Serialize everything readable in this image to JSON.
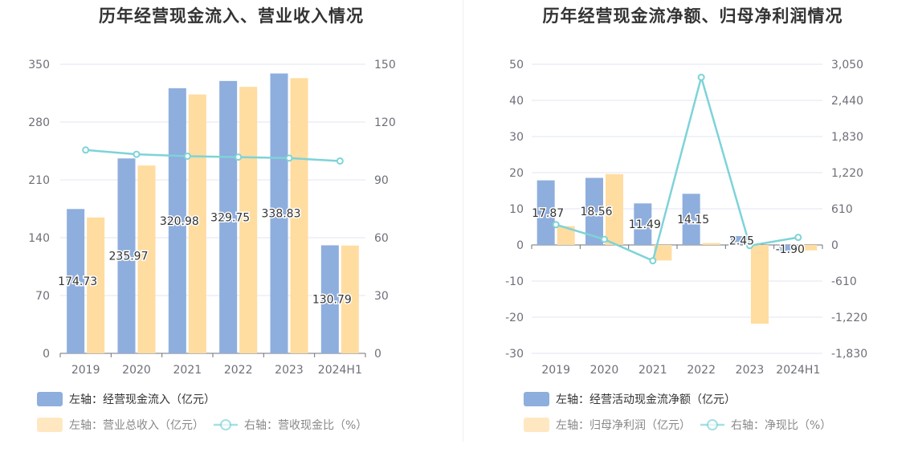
{
  "colors": {
    "bar_primary": "#8eaedd",
    "bar_secondary": "#ffdca0",
    "line": "#7ed3d8",
    "grid": "#e0e6f1",
    "axis_line": "#6e7079"
  },
  "chart_data": [
    {
      "type": "bar",
      "title": "历年经营现金流入、营业收入情况",
      "categories": [
        "2019",
        "2020",
        "2021",
        "2022",
        "2023",
        "2024H1"
      ],
      "series": [
        {
          "name": "左轴：经营现金流入（亿元）",
          "axis": "left",
          "type": "bar",
          "values": [
            174.73,
            235.97,
            320.98,
            329.75,
            338.83,
            130.79
          ],
          "labels_shown": true
        },
        {
          "name": "左轴：营业总收入（亿元）",
          "axis": "left",
          "type": "bar",
          "values": [
            164.5,
            227.4,
            313.4,
            322.6,
            333.2,
            130.5
          ],
          "labels_shown": false
        },
        {
          "name": "右轴：营收现金比（%）",
          "axis": "right",
          "type": "line",
          "values": [
            105.5,
            103.3,
            102.3,
            101.8,
            101.3,
            99.8
          ],
          "labels_shown": false
        }
      ],
      "left_axis": {
        "ticks": [
          "0",
          "70",
          "140",
          "210",
          "280",
          "350"
        ],
        "min": 0,
        "max": 350
      },
      "right_axis": {
        "ticks": [
          "0",
          "30",
          "60",
          "90",
          "120",
          "150"
        ],
        "min": 0,
        "max": 150
      },
      "grid": true,
      "legend_position": "bottom-left"
    },
    {
      "type": "bar",
      "title": "历年经营现金流净额、归母净利润情况",
      "categories": [
        "2019",
        "2020",
        "2021",
        "2022",
        "2023",
        "2024H1"
      ],
      "series": [
        {
          "name": "左轴：经营活动现金流净额（亿元）",
          "axis": "left",
          "type": "bar",
          "values": [
            17.87,
            18.56,
            11.49,
            14.15,
            2.45,
            -1.9
          ],
          "labels_shown": true
        },
        {
          "name": "左轴：归母净利润（亿元）",
          "axis": "left",
          "type": "bar",
          "values": [
            5.2,
            19.6,
            -4.3,
            0.5,
            -21.8,
            -1.5
          ],
          "labels_shown": false
        },
        {
          "name": "右轴：净现比（%）",
          "axis": "right",
          "type": "line",
          "values": [
            343,
            94,
            -267,
            2830,
            -11,
            127
          ],
          "labels_shown": false
        }
      ],
      "left_axis": {
        "ticks": [
          "-30",
          "-20",
          "-10",
          "0",
          "10",
          "20",
          "30",
          "40",
          "50"
        ],
        "min": -30,
        "max": 50
      },
      "right_axis": {
        "ticks": [
          "-1,830",
          "-1,220",
          "-610",
          "0",
          "610",
          "1,220",
          "1,830",
          "2,440",
          "3,050"
        ],
        "min": -1830,
        "max": 3050
      },
      "grid": true,
      "legend_position": "bottom-left"
    }
  ]
}
